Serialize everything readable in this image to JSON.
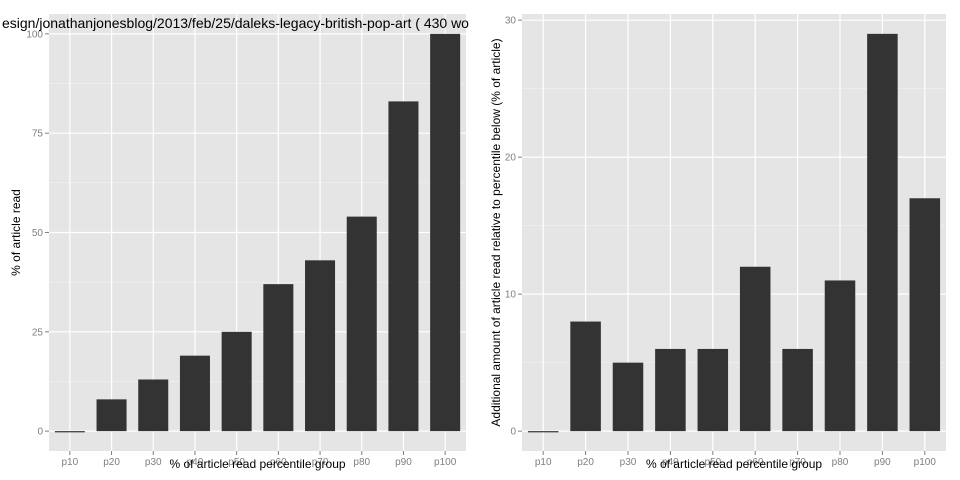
{
  "chart_data": [
    {
      "type": "bar",
      "title": "esign/jonathanjonesblog/2013/feb/25/daleks-legacy-british-pop-art ( 430 wo",
      "xlabel": "% of article read percentile group",
      "ylabel": "% of article read",
      "categories": [
        "p10",
        "p20",
        "p30",
        "p40",
        "p50",
        "p60",
        "p70",
        "p80",
        "p90",
        "p100"
      ],
      "values": [
        0,
        8,
        13,
        19,
        25,
        37,
        43,
        54,
        83,
        100
      ],
      "ylim": [
        -5,
        105
      ],
      "yticks": [
        0,
        25,
        50,
        75,
        100
      ],
      "grid": true,
      "bar_color": "#333333",
      "panel_color": "#e5e5e5",
      "grid_color": "#ffffff"
    },
    {
      "type": "bar",
      "title": "",
      "xlabel": "% of article read percentile group",
      "ylabel": "Additional amount of article read relative to percentile below (% of article)",
      "categories": [
        "p10",
        "p20",
        "p30",
        "p40",
        "p50",
        "p60",
        "p70",
        "p80",
        "p90",
        "p100"
      ],
      "values": [
        0,
        8,
        5,
        6,
        6,
        12,
        6,
        11,
        29,
        17
      ],
      "ylim": [
        -1.45,
        30.45
      ],
      "yticks": [
        0,
        10,
        20,
        30
      ],
      "grid": true,
      "bar_color": "#333333",
      "panel_color": "#e5e5e5",
      "grid_color": "#ffffff"
    }
  ]
}
